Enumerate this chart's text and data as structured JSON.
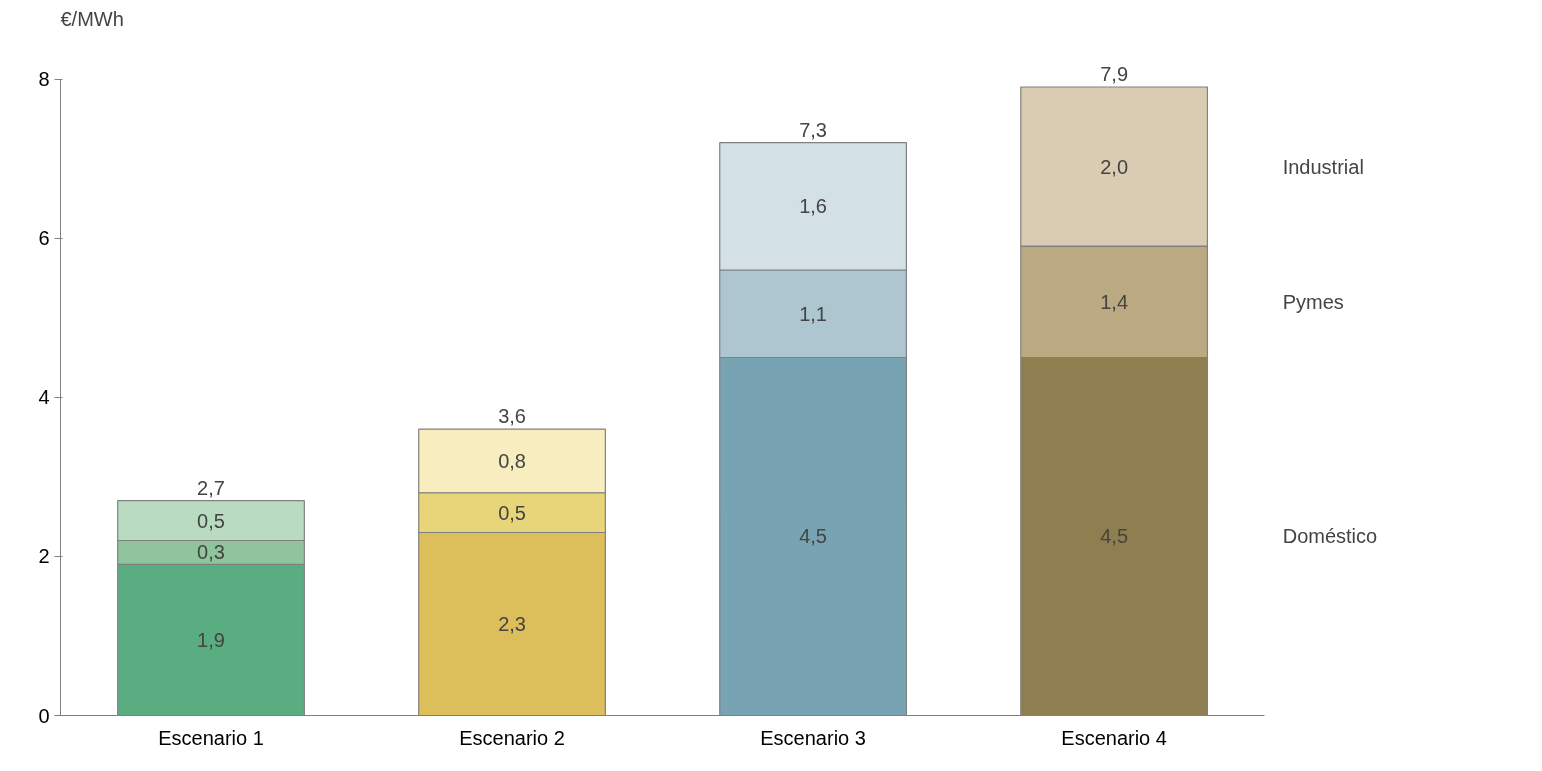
{
  "chart_data": {
    "type": "bar",
    "stacked": true,
    "ylabel": "€/MWh",
    "categories": [
      "Escenario 1",
      "Escenario 2",
      "Escenario 3",
      "Escenario 4"
    ],
    "ylim": [
      0,
      8
    ],
    "yticks": [
      0,
      2,
      4,
      6,
      8
    ],
    "grid": false,
    "series": [
      {
        "name": "Doméstico",
        "values": [
          1.9,
          2.3,
          4.5,
          4.5
        ],
        "colors": [
          "#5aad80",
          "#dcbf5a",
          "#78a3b3",
          "#8f7f50"
        ],
        "value_labels": [
          "1,9",
          "2,3",
          "4,5",
          "4,5"
        ]
      },
      {
        "name": "Pymes",
        "values": [
          0.3,
          0.5,
          1.1,
          1.4
        ],
        "colors": [
          "#8fc49d",
          "#e8d57a",
          "#adc6d0",
          "#bba982"
        ],
        "value_labels": [
          "0,3",
          "0,5",
          "1,1",
          "1,4"
        ]
      },
      {
        "name": "Industrial",
        "values": [
          0.5,
          0.8,
          1.6,
          2.0
        ],
        "colors": [
          "#b9dcc0",
          "#f7edbf",
          "#d3e0e6",
          "#d9ccb2"
        ],
        "value_labels": [
          "0,5",
          "0,8",
          "1,6",
          "2,0"
        ]
      }
    ],
    "totals": [
      "2,7",
      "3,6",
      "7,3",
      "7,9"
    ]
  }
}
